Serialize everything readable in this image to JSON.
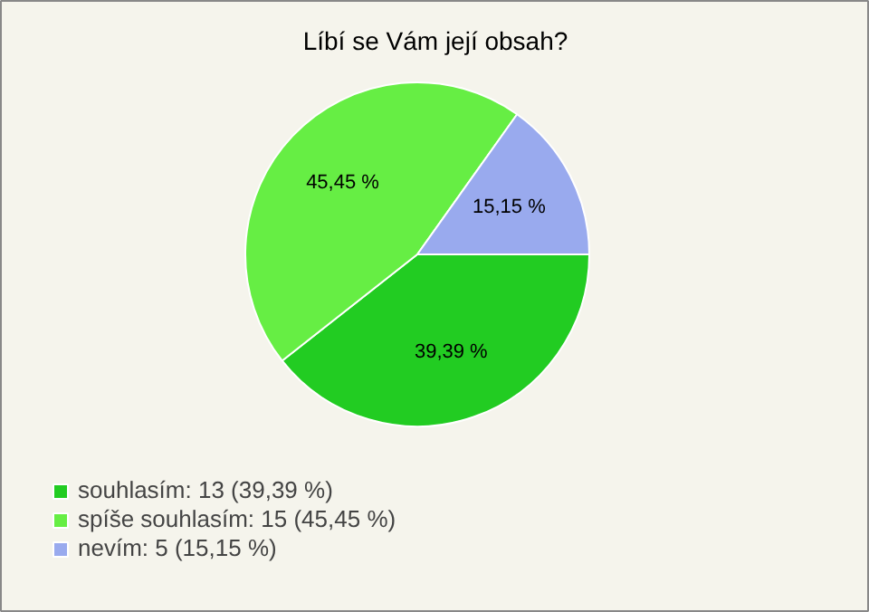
{
  "chart_data": {
    "type": "pie",
    "title": "Líbí se Vám její obsah?",
    "categories": [
      "souhlasím: 13 (39,39 %)",
      "spíše souhlasím: 15 (45,45 %)",
      "nevím: 5 (15,15 %)"
    ],
    "values": [
      39.39,
      45.45,
      15.15
    ],
    "value_labels": [
      "39,39 %",
      "45,45 %",
      "15,15 %"
    ],
    "colors": [
      "#22cc22",
      "#66ee44",
      "#99aaee"
    ],
    "legend": "bottom left"
  }
}
